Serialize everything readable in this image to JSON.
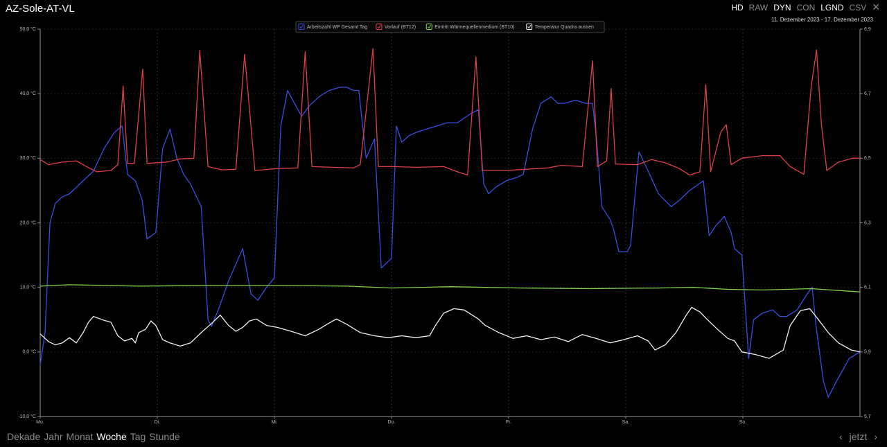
{
  "ui": {
    "title": "AZ-Sole-AT-VL",
    "buttons": [
      {
        "label": "HD",
        "active": true
      },
      {
        "label": "RAW",
        "active": false
      },
      {
        "label": "DYN",
        "active": true
      },
      {
        "label": "CON",
        "active": false
      },
      {
        "label": "LGND",
        "active": true
      },
      {
        "label": "CSV",
        "active": false
      }
    ],
    "date_range": "11. Dezember 2023 - 17. Dezember 2023",
    "periods": [
      {
        "label": "Dekade",
        "active": false
      },
      {
        "label": "Jahr",
        "active": false
      },
      {
        "label": "Monat",
        "active": false
      },
      {
        "label": "Woche",
        "active": true
      },
      {
        "label": "Tag",
        "active": false
      },
      {
        "label": "Stunde",
        "active": false
      }
    ],
    "now": "jetzt"
  },
  "chart_data": {
    "type": "line",
    "xlim": [
      0,
      168
    ],
    "xticks": [
      {
        "value": 0,
        "label": "Mo."
      },
      {
        "value": 24,
        "label": "Di."
      },
      {
        "value": 48,
        "label": "Mi."
      },
      {
        "value": 72,
        "label": "Do."
      },
      {
        "value": 96,
        "label": "Fr."
      },
      {
        "value": 120,
        "label": "Sa."
      },
      {
        "value": 144,
        "label": "So."
      }
    ],
    "ylim": [
      -10,
      50
    ],
    "yticks": [
      {
        "value": -10,
        "label": "-10,0 °C"
      },
      {
        "value": 0,
        "label": "0,0 °C"
      },
      {
        "value": 10,
        "label": "10,0 °C"
      },
      {
        "value": 20,
        "label": "20,0 °C"
      },
      {
        "value": 30,
        "label": "30,0 °C"
      },
      {
        "value": 40,
        "label": "40,0 °C"
      },
      {
        "value": 50,
        "label": "50,0 °C"
      }
    ],
    "y2lim": [
      5.7,
      6.9
    ],
    "y2ticks": [
      {
        "value": 5.7,
        "label": "5,7"
      },
      {
        "value": 5.9,
        "label": "5,9"
      },
      {
        "value": 6.1,
        "label": "6,1"
      },
      {
        "value": 6.3,
        "label": "6,3"
      },
      {
        "value": 6.5,
        "label": "6,5"
      },
      {
        "value": 6.7,
        "label": "6,7"
      },
      {
        "value": 6.9,
        "label": "6,9"
      }
    ],
    "grid": true,
    "legend": "top",
    "series": [
      {
        "name": "Arbeitszahl WP Gesamt Tag",
        "color": "#3a4fe0",
        "axis": "y2",
        "x": [
          0,
          1.0,
          2.0,
          3.1,
          4.5,
          6.0,
          7.4,
          8.8,
          10.9,
          13.1,
          15.2,
          16.8,
          17.9,
          19.5,
          20.9,
          21.9,
          23.7,
          25.1,
          26.6,
          28.0,
          29.4,
          30.8,
          33.0,
          34.4,
          35.1,
          36.5,
          38.6,
          41.5,
          43.2,
          44.6,
          46.4,
          48.0,
          49.3,
          50.7,
          52.1,
          53.6,
          55.0,
          57.1,
          59.2,
          61.4,
          62.8,
          64.2,
          65.3,
          66.8,
          68.5,
          69.9,
          72.0,
          73.0,
          74.1,
          75.6,
          77.0,
          79.1,
          81.3,
          83.4,
          85.5,
          88.4,
          89.8,
          90.9,
          91.9,
          93.3,
          95.5,
          97.6,
          99.0,
          100.9,
          102.6,
          104.7,
          106.1,
          107.5,
          109.7,
          111.8,
          113.2,
          114.0,
          115.1,
          116.8,
          117.5,
          118.6,
          120.3,
          121.0,
          122.7,
          124.6,
          126.7,
          129.3,
          131.0,
          133.1,
          135.9,
          137.1,
          138.4,
          140.2,
          141.6,
          142.3,
          143.8,
          145.2,
          146.2,
          148.0,
          150.1,
          151.6,
          153.0,
          155.1,
          157.2,
          158.2,
          159.0,
          160.5,
          161.5,
          163.6,
          165.8,
          168.0
        ],
        "values": [
          5.86,
          5.96,
          6.3,
          6.36,
          6.38,
          6.39,
          6.41,
          6.43,
          6.46,
          6.53,
          6.58,
          6.6,
          6.45,
          6.43,
          6.37,
          6.25,
          6.27,
          6.53,
          6.59,
          6.5,
          6.45,
          6.42,
          6.35,
          6.0,
          5.98,
          6.03,
          6.12,
          6.22,
          6.08,
          6.06,
          6.1,
          6.13,
          6.6,
          6.71,
          6.67,
          6.63,
          6.66,
          6.69,
          6.71,
          6.72,
          6.72,
          6.71,
          6.71,
          6.5,
          6.56,
          6.16,
          6.19,
          6.6,
          6.55,
          6.57,
          6.58,
          6.59,
          6.6,
          6.61,
          6.61,
          6.64,
          6.65,
          6.42,
          6.39,
          6.41,
          6.43,
          6.44,
          6.45,
          6.59,
          6.67,
          6.69,
          6.67,
          6.67,
          6.68,
          6.67,
          6.67,
          6.56,
          6.35,
          6.31,
          6.28,
          6.21,
          6.21,
          6.23,
          6.52,
          6.46,
          6.39,
          6.35,
          6.37,
          6.4,
          6.43,
          6.26,
          6.29,
          6.32,
          6.27,
          6.22,
          6.2,
          5.88,
          6.0,
          6.02,
          6.03,
          6.01,
          6.01,
          6.03,
          6.08,
          6.1,
          5.98,
          5.81,
          5.76,
          5.82,
          5.88,
          5.9
        ]
      },
      {
        "name": "Vorlauf (BT12)",
        "color": "#e0404a",
        "x": [
          0,
          1.7,
          4.5,
          7.4,
          9.5,
          11.6,
          14.5,
          15.9,
          17.0,
          17.9,
          19.3,
          21.0,
          21.9,
          25.9,
          28.7,
          31.5,
          32.7,
          34.4,
          37.2,
          40.1,
          41.9,
          44.0,
          48.6,
          52.8,
          54.3,
          55.7,
          59.9,
          64.2,
          65.6,
          68.2,
          69.3,
          72.0,
          77.0,
          82.7,
          85.5,
          87.6,
          89.3,
          90.6,
          95.5,
          99.7,
          104.0,
          106.8,
          111.1,
          113.2,
          114.2,
          116.1,
          117.0,
          117.9,
          122.4,
          125.3,
          128.1,
          131.0,
          133.1,
          135.2,
          136.4,
          137.4,
          139.5,
          140.6,
          141.6,
          143.8,
          148.0,
          151.6,
          153.7,
          156.5,
          158.0,
          159.1,
          160.1,
          161.2,
          163.6,
          166.5,
          168.0
        ],
        "values": [
          29.8,
          29.0,
          29.4,
          29.6,
          28.7,
          27.9,
          28.1,
          29.0,
          41.2,
          29.2,
          29.2,
          43.8,
          29.2,
          29.4,
          29.9,
          30.0,
          46.7,
          28.7,
          28.2,
          28.3,
          46.1,
          28.1,
          28.4,
          28.5,
          46.5,
          28.7,
          28.6,
          28.5,
          29.0,
          47.0,
          28.7,
          28.7,
          28.6,
          28.7,
          27.9,
          27.4,
          45.7,
          28.1,
          28.1,
          28.3,
          28.5,
          28.9,
          28.7,
          45.1,
          28.7,
          29.6,
          40.8,
          29.1,
          29.0,
          29.8,
          29.3,
          28.4,
          27.4,
          27.9,
          41.4,
          27.9,
          34.1,
          35.2,
          29.0,
          30.0,
          30.4,
          30.4,
          28.7,
          27.5,
          41.1,
          46.8,
          35.2,
          28.1,
          29.4,
          30.0,
          30.0
        ]
      },
      {
        "name": "Eintritt Wärmequellenmedium (BT10)",
        "color": "#7fd04a",
        "x": [
          0,
          6.0,
          20.2,
          34.4,
          48.6,
          62.8,
          72.0,
          84.1,
          98.3,
          112.5,
          126.7,
          133.8,
          140.9,
          148.0,
          158.0,
          168.0
        ],
        "values": [
          10.2,
          10.4,
          10.2,
          10.3,
          10.3,
          10.2,
          9.9,
          10.1,
          9.9,
          9.8,
          9.9,
          10.0,
          9.7,
          9.6,
          9.8,
          9.3
        ]
      },
      {
        "name": "Temperatur Quadra aussen",
        "color": "#f2f2f2",
        "x": [
          0,
          1.7,
          3.1,
          4.5,
          6.0,
          7.4,
          8.8,
          9.9,
          10.9,
          13.1,
          14.5,
          15.9,
          17.3,
          18.8,
          19.5,
          20.2,
          21.6,
          22.7,
          23.7,
          25.1,
          26.6,
          28.7,
          30.8,
          33.0,
          35.1,
          36.9,
          38.6,
          40.1,
          41.5,
          42.9,
          44.3,
          46.4,
          48.6,
          51.4,
          54.3,
          57.1,
          58.8,
          60.7,
          62.8,
          65.6,
          68.5,
          71.3,
          74.1,
          77.0,
          79.8,
          81.0,
          82.7,
          84.8,
          86.9,
          89.8,
          91.2,
          94.0,
          96.9,
          99.7,
          102.6,
          105.4,
          108.2,
          111.1,
          113.9,
          116.8,
          119.6,
          122.4,
          124.6,
          126.0,
          128.1,
          130.3,
          132.4,
          133.5,
          135.2,
          136.6,
          138.8,
          140.9,
          142.3,
          143.8,
          146.6,
          149.4,
          152.3,
          153.7,
          155.8,
          157.7,
          159.4,
          161.5,
          163.6,
          166.2,
          168.0
        ],
        "values": [
          2.8,
          1.6,
          1.1,
          1.4,
          2.2,
          1.4,
          3.0,
          4.6,
          5.5,
          4.9,
          4.6,
          2.5,
          1.7,
          2.1,
          1.4,
          3.0,
          3.5,
          4.8,
          4.1,
          1.9,
          1.4,
          0.9,
          1.4,
          3.0,
          4.4,
          5.7,
          4.1,
          3.2,
          3.8,
          4.8,
          5.1,
          4.1,
          3.8,
          3.2,
          2.5,
          3.5,
          4.3,
          5.1,
          4.3,
          3.0,
          2.5,
          2.2,
          2.5,
          2.2,
          2.5,
          4.1,
          6.0,
          6.7,
          6.5,
          5.1,
          4.1,
          3.0,
          2.1,
          2.5,
          1.9,
          2.3,
          1.6,
          2.7,
          2.1,
          1.4,
          1.9,
          2.5,
          1.7,
          0.3,
          1.1,
          3.0,
          5.7,
          6.9,
          6.2,
          5.1,
          3.5,
          2.1,
          1.7,
          0,
          -0.4,
          -1.0,
          0.3,
          4.1,
          6.4,
          6.7,
          5.1,
          3.0,
          1.4,
          0.3,
          0
        ]
      }
    ]
  }
}
